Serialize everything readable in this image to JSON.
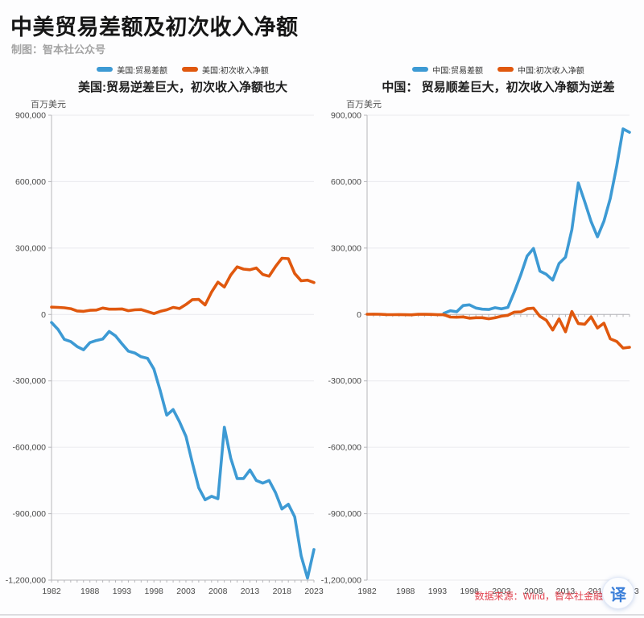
{
  "header": {
    "title": "中美贸易差额及初次收入净额",
    "subtitle": "制图：智本社公众号"
  },
  "footer": {
    "source_text": "数据来源：Wind，智本社金融研究院"
  },
  "badge": {
    "label": "译"
  },
  "colors": {
    "line_blue": "#3d9ad4",
    "line_orange": "#e0580e",
    "source_red": "#e2414e",
    "badge_blue": "#3b7fd9"
  },
  "chart_data": [
    {
      "type": "line",
      "title": "美国:贸易逆差巨大，初次收入净额也大",
      "unit_label": "百万美元",
      "legend_position": "top",
      "grid": true,
      "xlim": [
        1982,
        2023
      ],
      "ylim": [
        -1200000,
        900000
      ],
      "x_ticks": [
        "1982",
        "1988",
        "1993",
        "1998",
        "2003",
        "2008",
        "2013",
        "2018",
        "2023"
      ],
      "y_ticks": [
        "900,000",
        "600,000",
        "300,000",
        "0",
        "-300,000",
        "-600,000",
        "-900,000",
        "-1,200,000"
      ],
      "series": [
        {
          "name": "美国:贸易差额",
          "color": "#3d9ad4",
          "start_year": 1982,
          "values": [
            -36485,
            -67102,
            -112492,
            -122173,
            -145081,
            -159557,
            -126959,
            -117749,
            -111037,
            -76937,
            -96897,
            -132451,
            -165831,
            -174170,
            -191000,
            -198104,
            -246687,
            -346018,
            -454690,
            -429519,
            -485003,
            -550892,
            -669578,
            -782804,
            -837289,
            -821196,
            -832492,
            -509694,
            -648678,
            -740999,
            -741119,
            -702551,
            -749917,
            -761868,
            -749801,
            -805208,
            -878748,
            -857259,
            -913886,
            -1090295,
            -1191033,
            -1061710
          ]
        },
        {
          "name": "美国:初次收入净额",
          "color": "#e0580e",
          "start_year": 1982,
          "values": [
            33000,
            32000,
            30000,
            26000,
            16000,
            14000,
            19000,
            20000,
            29000,
            24000,
            24000,
            25000,
            17000,
            21000,
            22000,
            13000,
            4000,
            14000,
            21000,
            32000,
            27000,
            45000,
            67000,
            68000,
            43000,
            101000,
            146000,
            124000,
            178000,
            215000,
            205000,
            202000,
            210000,
            181000,
            173000,
            217000,
            254000,
            252000,
            185000,
            152000,
            155000,
            144000
          ]
        }
      ]
    },
    {
      "type": "line",
      "title": "中国： 贸易顺差巨大，初次收入净额为逆差",
      "unit_label": "百万美元",
      "legend_position": "top",
      "grid": true,
      "xlim": [
        1982,
        2023
      ],
      "ylim": [
        -1200000,
        900000
      ],
      "x_ticks": [
        "1982",
        "1988",
        "1993",
        "1998",
        "2003",
        "2008",
        "2013",
        "2018",
        "2023"
      ],
      "y_ticks": [
        "900,000",
        "600,000",
        "300,000",
        "0",
        "-300,000",
        "-600,000",
        "-900,000",
        "-1,200,000"
      ],
      "series": [
        {
          "name": "中国:贸易差额",
          "color": "#3d9ad4",
          "start_year": 1994,
          "values": [
            5392,
            16696,
            12215,
            40422,
            43475,
            29232,
            24109,
            22545,
            30426,
            25468,
            32097,
            102001,
            177523,
            263909,
            298131,
            195689,
            181510,
            154900,
            230309,
            259015,
            383058,
            593904,
            509710,
            419554,
            350947,
            421073,
            523991,
            670434,
            838000,
            823000
          ]
        },
        {
          "name": "中国:初次收入净额",
          "color": "#e0580e",
          "start_year": 1982,
          "values": [
            1000,
            1500,
            1200,
            -300,
            -800,
            -500,
            -1200,
            -1500,
            1000,
            800,
            300,
            -1300,
            -1000,
            -11774,
            -12437,
            -11004,
            -16644,
            -14666,
            -14666,
            -19175,
            -14945,
            -7838,
            -3523,
            10635,
            11755,
            25688,
            28580,
            -8533,
            -25899,
            -70318,
            -19887,
            -78442,
            13301,
            -41057,
            -44013,
            -10743,
            -61365,
            -39184,
            -110000,
            -122000,
            -152000,
            -148000
          ]
        }
      ]
    }
  ]
}
